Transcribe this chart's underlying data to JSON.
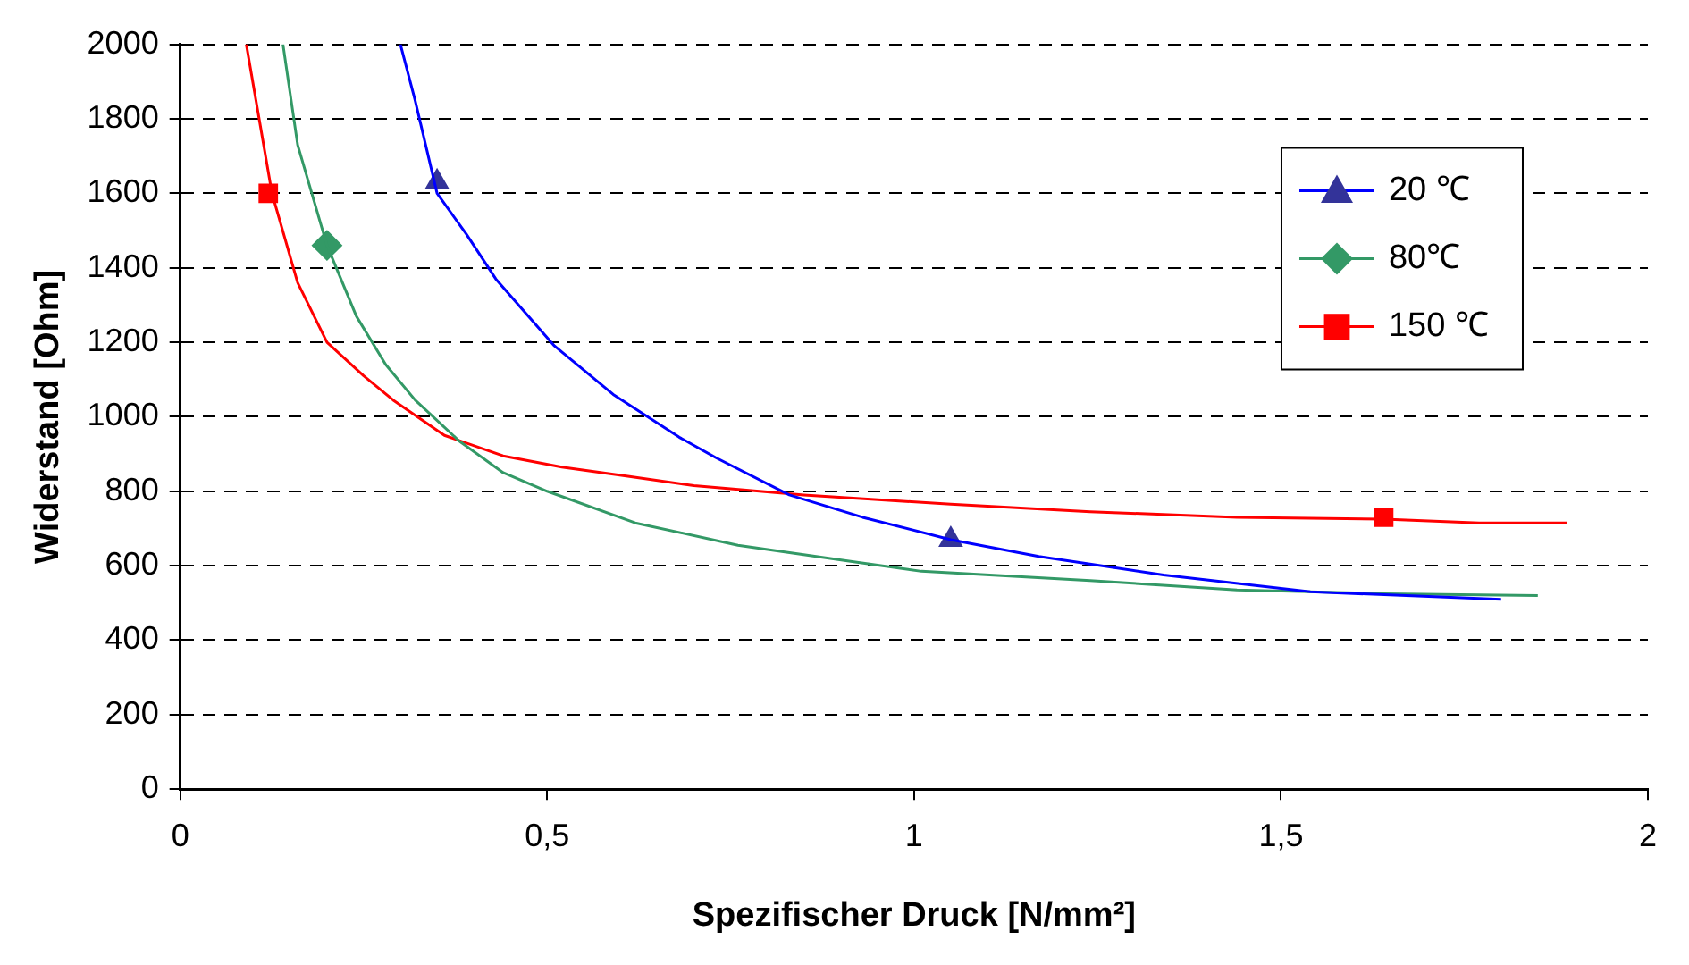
{
  "chart_data": {
    "type": "line",
    "xlabel": "Spezifischer Druck [N/mm²]",
    "ylabel": "Widerstand [Ohm]",
    "xlim": [
      0,
      2
    ],
    "xticks": [
      0,
      {
        "value": 0.5,
        "label": "0,5"
      },
      1,
      {
        "value": 1.5,
        "label": "1,5"
      },
      2
    ],
    "ylim": [
      0,
      2000
    ],
    "yticks": [
      0,
      200,
      400,
      600,
      800,
      1000,
      1200,
      1400,
      1600,
      1800,
      2000
    ],
    "grid": "y",
    "legend": "top right",
    "line_style": "solid",
    "series": [
      {
        "name": "20 ℃",
        "color": "#0000ff",
        "x": [
          0.3,
          0.32,
          0.35,
          0.39,
          0.43,
          0.51,
          0.59,
          0.68,
          0.73,
          0.83,
          0.93,
          1.05,
          1.17,
          1.34,
          1.54,
          1.8
        ],
        "values": [
          2000,
          1850,
          1600,
          1490,
          1370,
          1190,
          1060,
          945,
          890,
          790,
          730,
          670,
          625,
          575,
          530,
          510
        ]
      },
      {
        "name": "80℃",
        "color": "#339966",
        "x": [
          0.14,
          0.16,
          0.2,
          0.24,
          0.28,
          0.32,
          0.38,
          0.44,
          0.5,
          0.62,
          0.76,
          0.92,
          1.01,
          1.24,
          1.44,
          1.64,
          1.85
        ],
        "values": [
          2000,
          1730,
          1460,
          1270,
          1140,
          1045,
          935,
          850,
          800,
          715,
          655,
          610,
          585,
          560,
          535,
          525,
          520
        ]
      },
      {
        "name": "150 ℃",
        "color": "#ff0000",
        "x": [
          0.09,
          0.125,
          0.16,
          0.2,
          0.25,
          0.29,
          0.36,
          0.44,
          0.52,
          0.61,
          0.7,
          0.85,
          1.05,
          1.24,
          1.44,
          1.64,
          1.77,
          1.89
        ],
        "values": [
          2000,
          1600,
          1360,
          1200,
          1110,
          1045,
          950,
          895,
          865,
          840,
          815,
          790,
          765,
          745,
          730,
          725,
          715,
          715
        ]
      },
      {
        "type": "scatter",
        "color": "#333399",
        "marker": "triangle",
        "x": [
          0.35,
          1.05
        ],
        "values": [
          1630,
          670
        ]
      },
      {
        "type": "scatter",
        "color": "#339966",
        "marker": "diamond",
        "x": [
          0.2
        ],
        "values": [
          1460
        ]
      },
      {
        "type": "scatter",
        "color": "#ff0000",
        "marker": "square",
        "x": [
          0.12,
          1.64
        ],
        "values": [
          1600,
          730
        ]
      }
    ]
  }
}
